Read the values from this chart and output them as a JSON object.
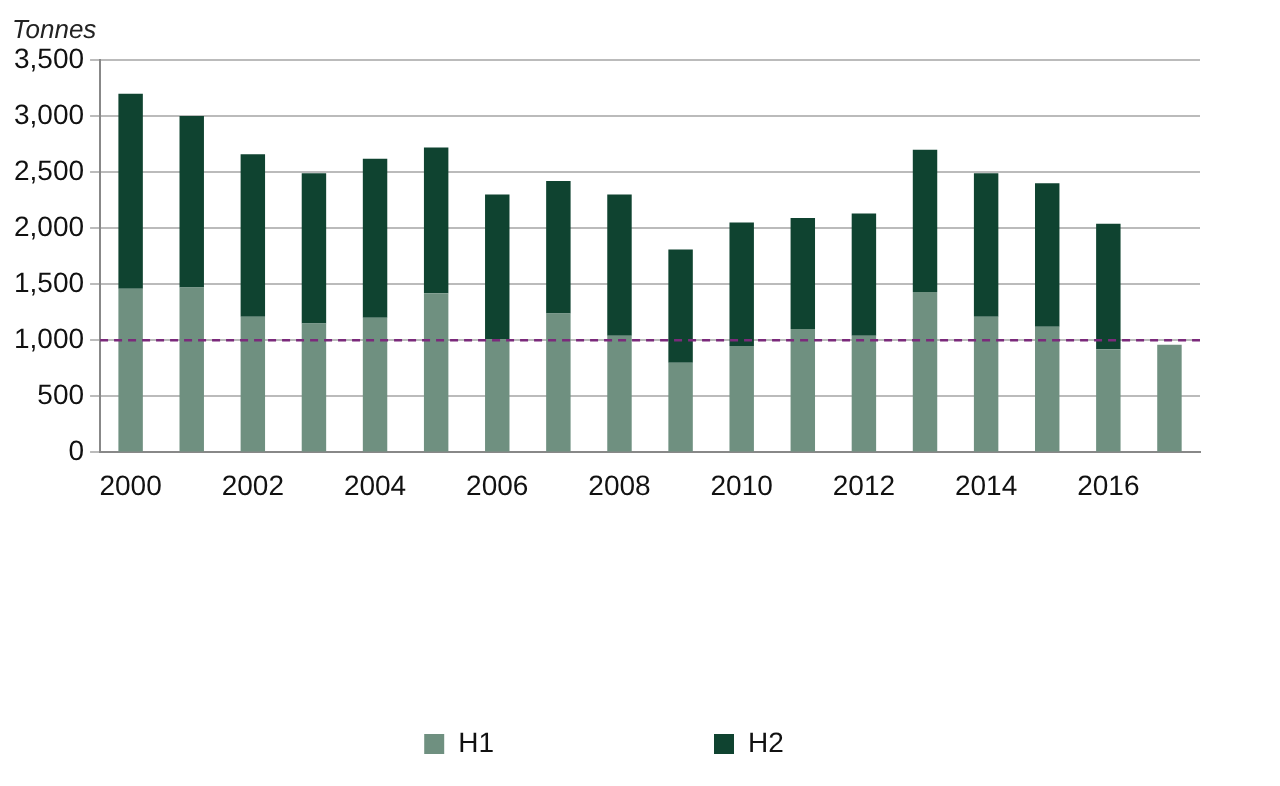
{
  "chart_data": {
    "type": "bar",
    "stacked": true,
    "ylabel": "Tonnes",
    "categories": [
      "2000",
      null,
      "2002",
      null,
      "2004",
      null,
      "2006",
      null,
      "2008",
      null,
      "2010",
      null,
      "2012",
      null,
      "2014",
      null,
      "2016",
      null
    ],
    "series": [
      {
        "name": "H1",
        "color": "#6f9080",
        "values": [
          1460,
          1470,
          1210,
          1150,
          1200,
          1420,
          1010,
          1240,
          1040,
          800,
          950,
          1100,
          1040,
          1430,
          1210,
          1120,
          920,
          960
        ]
      },
      {
        "name": "H2",
        "color": "#0f4330",
        "values": [
          1740,
          1530,
          1450,
          1340,
          1420,
          1300,
          1290,
          1180,
          1260,
          1010,
          1100,
          990,
          1090,
          1270,
          1280,
          1280,
          1120,
          null
        ]
      }
    ],
    "ylim": [
      0,
      3500
    ],
    "yticks": [
      {
        "value": 0,
        "label": "0"
      },
      {
        "value": 500,
        "label": "500"
      },
      {
        "value": 1000,
        "label": "1,000"
      },
      {
        "value": 1500,
        "label": "1,500"
      },
      {
        "value": 2000,
        "label": "2,000"
      },
      {
        "value": 2500,
        "label": "2,500"
      },
      {
        "value": 3000,
        "label": "3,000"
      },
      {
        "value": 3500,
        "label": "3,500"
      }
    ],
    "grid": "y",
    "legend": "bottom",
    "ref_lines": [
      {
        "axis": "y",
        "value": 1000,
        "color": "#7b2a7b",
        "line_style": "dashed"
      }
    ]
  }
}
